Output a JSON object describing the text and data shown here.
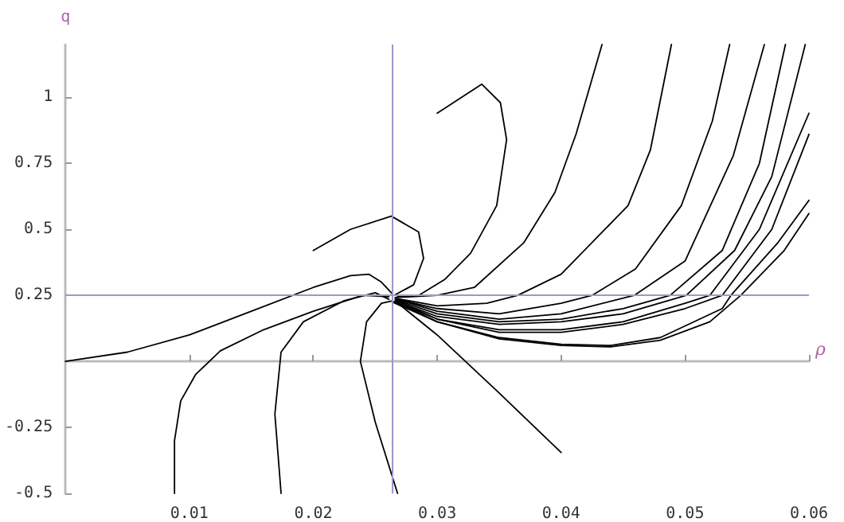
{
  "chart_data": {
    "type": "line",
    "xlabel": "ρ",
    "ylabel": "q",
    "xlim": [
      0,
      0.06
    ],
    "ylim": [
      -0.5,
      1.2
    ],
    "xticks": [
      0.01,
      0.02,
      0.03,
      0.04,
      0.05,
      0.06
    ],
    "yticks": [
      -0.5,
      -0.25,
      0.25,
      0.5,
      0.75,
      1
    ],
    "grid": false,
    "marker": "none",
    "line_style": "solid",
    "ref_lines": [
      {
        "axis": "x",
        "value": 0.0264,
        "color": "#9999cc"
      },
      {
        "axis": "y",
        "value": 0.25,
        "color": "#9999cc"
      }
    ],
    "series": [
      {
        "color": "#000000",
        "x": [
          0,
          0.005,
          0.01,
          0.015,
          0.02,
          0.023,
          0.0245,
          0.0255,
          0.0264
        ],
        "values": [
          0,
          0.035,
          0.1,
          0.19,
          0.28,
          0.325,
          0.33,
          0.3,
          0.255
        ]
      },
      {
        "color": "#000000",
        "x": [
          0.0088,
          0.0088,
          0.0093,
          0.0105,
          0.0125,
          0.016,
          0.02,
          0.024,
          0.0261
        ],
        "values": [
          -0.5,
          -0.3,
          -0.15,
          -0.05,
          0.04,
          0.12,
          0.19,
          0.25,
          0.245
        ]
      },
      {
        "color": "#000000",
        "x": [
          0.0174,
          0.0169,
          0.0174,
          0.0192,
          0.0225,
          0.025,
          0.0261
        ],
        "values": [
          -0.5,
          -0.2,
          0.035,
          0.15,
          0.23,
          0.26,
          0.235
        ]
      },
      {
        "color": "#000000",
        "x": [
          0.0268,
          0.025,
          0.0238,
          0.0243,
          0.0255,
          0.0263
        ],
        "values": [
          -0.5,
          -0.23,
          0,
          0.15,
          0.22,
          0.228
        ]
      },
      {
        "color": "#000000",
        "x": [
          0.02,
          0.023,
          0.0263,
          0.0285,
          0.0289,
          0.0281,
          0.0266
        ],
        "values": [
          0.42,
          0.5,
          0.55,
          0.49,
          0.39,
          0.29,
          0.252
        ]
      },
      {
        "color": "#000000",
        "x": [
          0.03,
          0.0336,
          0.0351,
          0.0356,
          0.0348,
          0.0327,
          0.0306,
          0.0285,
          0.0268
        ],
        "values": [
          0.94,
          1.05,
          0.98,
          0.84,
          0.59,
          0.41,
          0.31,
          0.25,
          0.245
        ]
      },
      {
        "color": "#000000",
        "x": [
          0.0267,
          0.03,
          0.035,
          0.04
        ],
        "values": [
          0.225,
          0.1,
          -0.12,
          -0.345
        ]
      },
      {
        "color": "#000000",
        "x": [
          0.0266,
          0.03,
          0.033,
          0.037,
          0.0395,
          0.0412,
          0.0433
        ],
        "values": [
          0.242,
          0.25,
          0.28,
          0.45,
          0.64,
          0.86,
          1.2
        ]
      },
      {
        "color": "#000000",
        "x": [
          0.0267,
          0.03,
          0.034,
          0.0365,
          0.04,
          0.0454,
          0.0472,
          0.0489
        ],
        "values": [
          0.238,
          0.21,
          0.22,
          0.25,
          0.33,
          0.59,
          0.8,
          1.2
        ]
      },
      {
        "color": "#000000",
        "x": [
          0.0266,
          0.03,
          0.035,
          0.04,
          0.0425,
          0.046,
          0.0497,
          0.0522,
          0.0536
        ],
        "values": [
          0.236,
          0.2,
          0.18,
          0.22,
          0.25,
          0.35,
          0.59,
          0.91,
          1.2
        ]
      },
      {
        "color": "#000000",
        "x": [
          0.0268,
          0.03,
          0.035,
          0.04,
          0.0459,
          0.05,
          0.0539,
          0.0564
        ],
        "values": [
          0.234,
          0.19,
          0.16,
          0.18,
          0.25,
          0.38,
          0.78,
          1.2
        ]
      },
      {
        "color": "#000000",
        "x": [
          0.0267,
          0.03,
          0.035,
          0.04,
          0.045,
          0.0488,
          0.053,
          0.056,
          0.0581
        ],
        "values": [
          0.232,
          0.18,
          0.15,
          0.16,
          0.2,
          0.25,
          0.42,
          0.75,
          1.2
        ]
      },
      {
        "color": "#000000",
        "x": [
          0.0266,
          0.03,
          0.035,
          0.04,
          0.045,
          0.0501,
          0.054,
          0.057,
          0.0597
        ],
        "values": [
          0.23,
          0.17,
          0.14,
          0.15,
          0.18,
          0.25,
          0.42,
          0.7,
          1.2
        ]
      },
      {
        "color": "#000000",
        "x": [
          0.0268,
          0.03,
          0.035,
          0.04,
          0.045,
          0.05,
          0.052,
          0.056,
          0.06
        ],
        "values": [
          0.228,
          0.16,
          0.12,
          0.12,
          0.15,
          0.22,
          0.25,
          0.5,
          0.94
        ]
      },
      {
        "color": "#000000",
        "x": [
          0.0265,
          0.03,
          0.035,
          0.04,
          0.045,
          0.05,
          0.053,
          0.057,
          0.06
        ],
        "values": [
          0.226,
          0.16,
          0.11,
          0.11,
          0.14,
          0.2,
          0.25,
          0.5,
          0.86
        ]
      },
      {
        "color": "#000000",
        "x": [
          0.0267,
          0.03,
          0.035,
          0.04,
          0.044,
          0.048,
          0.053,
          0.0537,
          0.0575,
          0.06
        ],
        "values": [
          0.224,
          0.15,
          0.09,
          0.065,
          0.06,
          0.09,
          0.2,
          0.25,
          0.45,
          0.61
        ]
      },
      {
        "color": "#000000",
        "x": [
          0.0265,
          0.03,
          0.035,
          0.04,
          0.044,
          0.048,
          0.052,
          0.0545,
          0.058,
          0.06
        ],
        "values": [
          0.222,
          0.15,
          0.085,
          0.06,
          0.055,
          0.08,
          0.15,
          0.25,
          0.42,
          0.56
        ]
      }
    ]
  }
}
